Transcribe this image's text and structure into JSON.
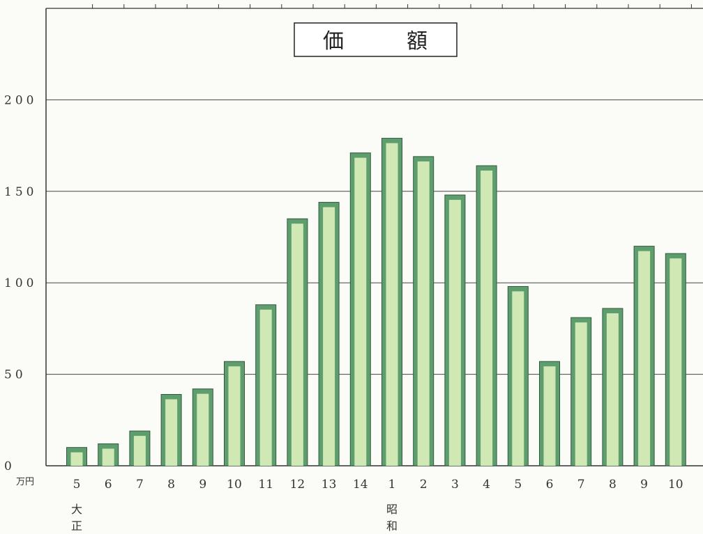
{
  "chart_data": {
    "type": "bar",
    "title": "価　　　額",
    "ylabel": "",
    "unit_label": "万円",
    "ylim": [
      0,
      250
    ],
    "y_ticks": [
      0,
      50,
      100,
      150,
      200
    ],
    "y_tick_labels": [
      "0",
      "50",
      "100",
      "150",
      "200"
    ],
    "grid": true,
    "categories": [
      "5",
      "6",
      "7",
      "8",
      "9",
      "10",
      "11",
      "12",
      "13",
      "14",
      "1",
      "2",
      "3",
      "4",
      "5",
      "6",
      "7",
      "8",
      "9",
      "10"
    ],
    "values": [
      10,
      12,
      19,
      39,
      42,
      57,
      88,
      135,
      144,
      171,
      179,
      169,
      148,
      164,
      98,
      57,
      81,
      86,
      120,
      116
    ],
    "era_labels": [
      {
        "category_index": 0,
        "text": [
          "大",
          "正"
        ]
      },
      {
        "category_index": 10,
        "text": [
          "昭",
          "和"
        ]
      }
    ],
    "colors": {
      "bar_outer": "#5e9e6e",
      "bar_inner": "#cfe8b4",
      "bar_edge": "#2f5a3a",
      "axis": "#333333"
    }
  }
}
